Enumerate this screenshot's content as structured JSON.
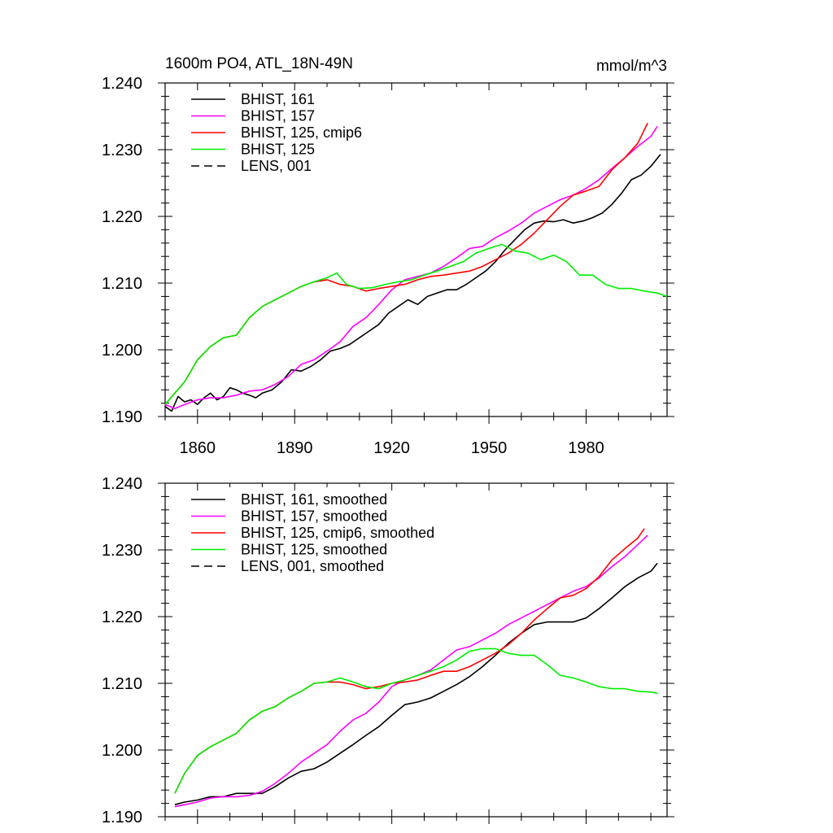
{
  "figure": {
    "title": "1600m PO4, ATL_18N-49N",
    "units": "mmol/m^3"
  },
  "chart_data": [
    {
      "type": "line",
      "panel": "top",
      "title": "1600m PO4, ATL_18N-49N",
      "units_label": "mmol/m^3",
      "xlabel": "",
      "ylabel": "",
      "xlim": [
        1850,
        2005
      ],
      "ylim": [
        1.19,
        1.24
      ],
      "xticks": [
        1860,
        1890,
        1920,
        1950,
        1980
      ],
      "xtick_labels": [
        "1860",
        "1890",
        "1920",
        "1950",
        "1980"
      ],
      "yticks": [
        1.19,
        1.2,
        1.21,
        1.22,
        1.23,
        1.24
      ],
      "ytick_labels": [
        "1.190",
        "1.200",
        "1.210",
        "1.220",
        "1.230",
        "1.240"
      ],
      "legend_position": "top-left",
      "series": [
        {
          "name": "BHIST, 161",
          "color": "#000000",
          "dash": "solid",
          "x": [
            1850,
            1852,
            1854,
            1856,
            1858,
            1860,
            1862,
            1864,
            1866,
            1868,
            1870,
            1872,
            1874,
            1876,
            1878,
            1880,
            1883,
            1886,
            1889,
            1892,
            1895,
            1898,
            1901,
            1904,
            1907,
            1910,
            1913,
            1916,
            1919,
            1922,
            1925,
            1928,
            1931,
            1934,
            1937,
            1940,
            1943,
            1946,
            1949,
            1952,
            1955,
            1958,
            1961,
            1964,
            1967,
            1970,
            1973,
            1976,
            1979,
            1982,
            1985,
            1988,
            1991,
            1994,
            1997,
            2000,
            2003
          ],
          "y": [
            1.1915,
            1.1908,
            1.193,
            1.1922,
            1.1925,
            1.1918,
            1.1928,
            1.1935,
            1.1925,
            1.193,
            1.1943,
            1.194,
            1.1935,
            1.1932,
            1.1928,
            1.1935,
            1.194,
            1.1952,
            1.197,
            1.1968,
            1.1975,
            1.1985,
            1.1998,
            1.2002,
            1.2008,
            1.2018,
            1.2028,
            1.2038,
            1.2055,
            1.2065,
            1.2075,
            1.2068,
            1.208,
            1.2085,
            1.209,
            1.209,
            1.2098,
            1.2108,
            1.2118,
            1.2132,
            1.215,
            1.2165,
            1.218,
            1.219,
            1.2193,
            1.2192,
            1.2195,
            1.219,
            1.2193,
            1.2198,
            1.2205,
            1.2218,
            1.2235,
            1.2255,
            1.2262,
            1.2275,
            1.2293
          ]
        },
        {
          "name": "BHIST, 157",
          "color": "#ff00ff",
          "dash": "solid",
          "x": [
            1850,
            1853,
            1856,
            1860,
            1864,
            1868,
            1872,
            1876,
            1880,
            1884,
            1888,
            1892,
            1896,
            1900,
            1904,
            1908,
            1912,
            1916,
            1920,
            1924,
            1928,
            1932,
            1936,
            1940,
            1944,
            1948,
            1952,
            1956,
            1960,
            1964,
            1968,
            1972,
            1976,
            1980,
            1984,
            1988,
            1992,
            1996,
            2000,
            2002
          ],
          "y": [
            1.1918,
            1.1912,
            1.1918,
            1.1925,
            1.1928,
            1.1928,
            1.1932,
            1.1938,
            1.194,
            1.1948,
            1.196,
            1.1978,
            1.1985,
            1.1998,
            1.2012,
            1.2035,
            1.2048,
            1.2068,
            1.209,
            1.2105,
            1.211,
            1.2115,
            1.2125,
            1.2138,
            1.2152,
            1.2155,
            1.2168,
            1.2178,
            1.219,
            1.2205,
            1.2215,
            1.2225,
            1.2232,
            1.2242,
            1.2255,
            1.2272,
            1.2288,
            1.2305,
            1.232,
            1.2335
          ]
        },
        {
          "name": "BHIST, 125, cmip6",
          "color": "#ff0000",
          "dash": "solid",
          "x": [
            1850,
            1853,
            1856,
            1860,
            1864,
            1868,
            1872,
            1876,
            1880,
            1884,
            1888,
            1892,
            1896,
            1900,
            1904,
            1908,
            1912,
            1916,
            1920,
            1924,
            1928,
            1932,
            1936,
            1940,
            1944,
            1948,
            1952,
            1956,
            1960,
            1964,
            1968,
            1972,
            1976,
            1980,
            1984,
            1988,
            1992,
            1996,
            1999
          ],
          "y": [
            1.1918,
            1.1935,
            1.1952,
            1.1985,
            1.2005,
            1.2018,
            1.2022,
            1.2048,
            1.2065,
            1.2075,
            1.2085,
            1.2095,
            1.2102,
            1.2105,
            1.2098,
            1.2095,
            1.2088,
            1.2092,
            1.2095,
            1.2098,
            1.2105,
            1.211,
            1.2112,
            1.2115,
            1.2118,
            1.2125,
            1.2135,
            1.2145,
            1.2158,
            1.2175,
            1.2195,
            1.2215,
            1.2232,
            1.2238,
            1.2245,
            1.227,
            1.2288,
            1.231,
            1.234
          ]
        },
        {
          "name": "BHIST, 125",
          "color": "#00ee00",
          "dash": "solid",
          "x": [
            1850,
            1853,
            1856,
            1860,
            1864,
            1868,
            1872,
            1876,
            1880,
            1884,
            1888,
            1892,
            1896,
            1900,
            1903,
            1906,
            1910,
            1914,
            1918,
            1922,
            1926,
            1930,
            1934,
            1938,
            1942,
            1946,
            1950,
            1954,
            1958,
            1962,
            1966,
            1970,
            1974,
            1978,
            1982,
            1986,
            1990,
            1994,
            1998,
            2002,
            2005
          ],
          "y": [
            1.1918,
            1.1935,
            1.1952,
            1.1985,
            1.2005,
            1.2018,
            1.2022,
            1.2048,
            1.2065,
            1.2075,
            1.2085,
            1.2095,
            1.2102,
            1.2108,
            1.2115,
            1.2098,
            1.2092,
            1.2093,
            1.2098,
            1.2102,
            1.2105,
            1.2112,
            1.2118,
            1.2125,
            1.2132,
            1.2145,
            1.2152,
            1.2158,
            1.2148,
            1.2145,
            1.2135,
            1.2142,
            1.2132,
            1.2112,
            1.2112,
            1.2098,
            1.2092,
            1.2092,
            1.2088,
            1.2085,
            1.208
          ]
        },
        {
          "name": "LENS, 001",
          "color": "#000000",
          "dash": "dashed",
          "x": [],
          "y": []
        }
      ]
    },
    {
      "type": "line",
      "panel": "bottom",
      "title": "",
      "xlabel": "",
      "ylabel": "",
      "xlim": [
        1850,
        2005
      ],
      "ylim": [
        1.19,
        1.24
      ],
      "xticks": [
        1860,
        1890,
        1920,
        1950,
        1980
      ],
      "xtick_labels": [],
      "yticks": [
        1.19,
        1.2,
        1.21,
        1.22,
        1.23,
        1.24
      ],
      "ytick_labels": [
        "1.190",
        "1.200",
        "1.210",
        "1.220",
        "1.230",
        "1.240"
      ],
      "legend_position": "top-left",
      "series": [
        {
          "name": "BHIST, 161, smoothed",
          "color": "#000000",
          "dash": "solid",
          "x": [
            1853,
            1856,
            1860,
            1864,
            1868,
            1872,
            1876,
            1880,
            1884,
            1888,
            1892,
            1896,
            1900,
            1904,
            1908,
            1912,
            1916,
            1920,
            1924,
            1928,
            1932,
            1936,
            1940,
            1944,
            1948,
            1952,
            1956,
            1960,
            1964,
            1968,
            1972,
            1976,
            1980,
            1984,
            1988,
            1992,
            1996,
            2000,
            2002
          ],
          "y": [
            1.1918,
            1.1922,
            1.1925,
            1.193,
            1.193,
            1.1935,
            1.1935,
            1.1935,
            1.1945,
            1.1958,
            1.1968,
            1.1972,
            1.1982,
            1.1995,
            1.2008,
            1.2022,
            1.2035,
            1.2052,
            1.2068,
            1.2072,
            1.2078,
            1.2088,
            1.2098,
            1.211,
            1.2125,
            1.2142,
            1.216,
            1.2175,
            1.2188,
            1.2192,
            1.2192,
            1.2192,
            1.2198,
            1.2212,
            1.2228,
            1.2245,
            1.2258,
            1.2268,
            1.228
          ]
        },
        {
          "name": "BHIST, 157, smoothed",
          "color": "#ff00ff",
          "dash": "solid",
          "x": [
            1853,
            1856,
            1860,
            1864,
            1868,
            1872,
            1876,
            1880,
            1884,
            1888,
            1892,
            1896,
            1900,
            1904,
            1908,
            1912,
            1916,
            1920,
            1924,
            1928,
            1932,
            1936,
            1940,
            1944,
            1948,
            1952,
            1956,
            1960,
            1964,
            1968,
            1972,
            1976,
            1980,
            1984,
            1988,
            1992,
            1996,
            1999
          ],
          "y": [
            1.1915,
            1.1918,
            1.1922,
            1.1928,
            1.193,
            1.193,
            1.1932,
            1.1938,
            1.195,
            1.1965,
            1.1982,
            1.1995,
            1.2008,
            1.2028,
            1.2045,
            1.2055,
            1.2072,
            1.2095,
            1.2105,
            1.2112,
            1.212,
            1.2135,
            1.215,
            1.2155,
            1.2165,
            1.2175,
            1.2188,
            1.2198,
            1.2208,
            1.2218,
            1.2228,
            1.2238,
            1.2245,
            1.2258,
            1.2275,
            1.229,
            1.2308,
            1.2322
          ]
        },
        {
          "name": "BHIST, 125, cmip6, smoothed",
          "color": "#ff0000",
          "dash": "solid",
          "x": [
            1853,
            1856,
            1860,
            1864,
            1868,
            1872,
            1876,
            1880,
            1884,
            1888,
            1892,
            1896,
            1900,
            1904,
            1908,
            1912,
            1916,
            1920,
            1924,
            1928,
            1932,
            1936,
            1940,
            1944,
            1948,
            1952,
            1956,
            1960,
            1964,
            1968,
            1972,
            1976,
            1980,
            1984,
            1988,
            1992,
            1996,
            1998
          ],
          "y": [
            1.1935,
            1.1965,
            1.1992,
            1.2005,
            1.2015,
            1.2025,
            1.2045,
            1.2058,
            1.2065,
            1.2078,
            1.2088,
            1.21,
            1.2102,
            1.2102,
            1.2098,
            1.2092,
            1.2095,
            1.21,
            1.2102,
            1.2105,
            1.2112,
            1.2118,
            1.2118,
            1.2125,
            1.2135,
            1.2145,
            1.2158,
            1.2175,
            1.2195,
            1.2212,
            1.2228,
            1.2232,
            1.2242,
            1.226,
            1.2285,
            1.2302,
            1.2318,
            1.2332
          ]
        },
        {
          "name": "BHIST, 125, smoothed",
          "color": "#00ee00",
          "dash": "solid",
          "x": [
            1853,
            1856,
            1860,
            1864,
            1868,
            1872,
            1876,
            1880,
            1884,
            1888,
            1892,
            1896,
            1900,
            1904,
            1908,
            1912,
            1916,
            1920,
            1924,
            1928,
            1932,
            1936,
            1940,
            1944,
            1948,
            1952,
            1956,
            1960,
            1964,
            1968,
            1972,
            1976,
            1980,
            1984,
            1988,
            1992,
            1996,
            2000,
            2002
          ],
          "y": [
            1.1935,
            1.1965,
            1.1992,
            1.2005,
            1.2015,
            1.2025,
            1.2045,
            1.2058,
            1.2065,
            1.2078,
            1.2088,
            1.21,
            1.2102,
            1.2108,
            1.2102,
            1.2095,
            1.2092,
            1.21,
            1.2105,
            1.2112,
            1.2118,
            1.2125,
            1.2135,
            1.2148,
            1.2152,
            1.2152,
            1.2145,
            1.2142,
            1.2142,
            1.2128,
            1.2112,
            1.2108,
            1.2102,
            1.2095,
            1.2092,
            1.2092,
            1.2088,
            1.2087,
            1.2085
          ]
        },
        {
          "name": "LENS, 001, smoothed",
          "color": "#000000",
          "dash": "dashed",
          "x": [],
          "y": []
        }
      ]
    }
  ]
}
